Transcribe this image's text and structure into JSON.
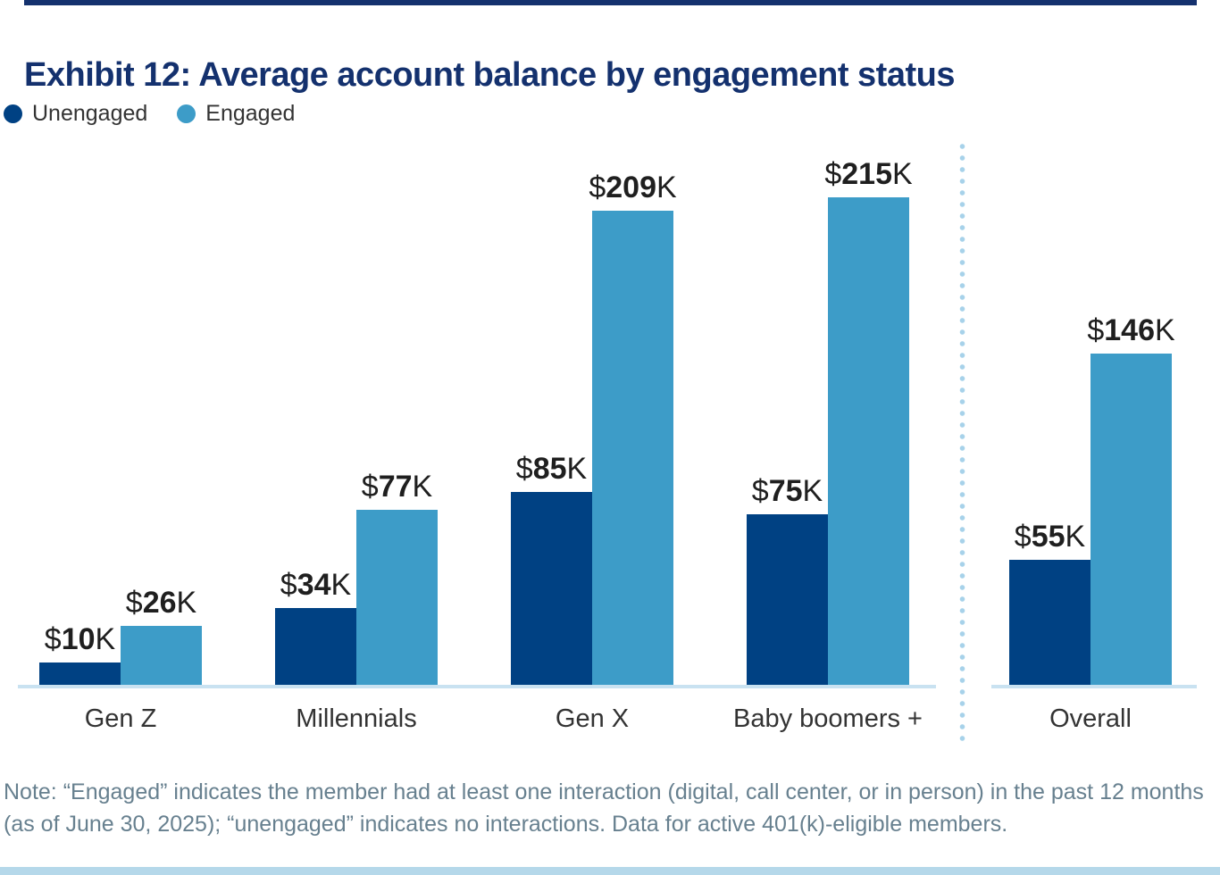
{
  "page": {
    "title": "Exhibit 12: Average account balance by engagement status",
    "note_lines": [
      "Note: “Engaged” indicates the member had at least one interaction (digital, call center, or in person) in the past 12 months",
      "(as of June 30, 2025); “unengaged” indicates no interactions. Data for active 401(k)-eligible members."
    ]
  },
  "legend": {
    "items": [
      {
        "label": "Unengaged",
        "color": "#004183"
      },
      {
        "label": "Engaged",
        "color": "#3D9CC8"
      }
    ]
  },
  "chart_data": {
    "type": "bar",
    "title": "Exhibit 12: Average account balance by engagement status",
    "categories": [
      "Gen Z",
      "Millennials",
      "Gen X",
      "Baby boomers +",
      "Overall"
    ],
    "series": [
      {
        "name": "Unengaged",
        "color": "#004183",
        "values": [
          10,
          34,
          85,
          75,
          55
        ]
      },
      {
        "name": "Engaged",
        "color": "#3D9CC8",
        "values": [
          26,
          77,
          209,
          215,
          146
        ]
      }
    ],
    "value_prefix": "$",
    "value_suffix": "K",
    "unit": "thousands of USD",
    "ylim": [
      0,
      215
    ],
    "grid": false,
    "legend_position": "top-left",
    "data_labels": true,
    "separator_before_category": "Overall"
  },
  "colors": {
    "title_navy": "#14316E",
    "accent_top": "#14316E",
    "accent_bottom": "#B5D8EA",
    "axis_line": "#C9E2F1",
    "separator_dots": "#A7D2EA",
    "value_label_text": "#1F1F1F",
    "category_label_text": "#333333",
    "note_text": "#67808F"
  }
}
